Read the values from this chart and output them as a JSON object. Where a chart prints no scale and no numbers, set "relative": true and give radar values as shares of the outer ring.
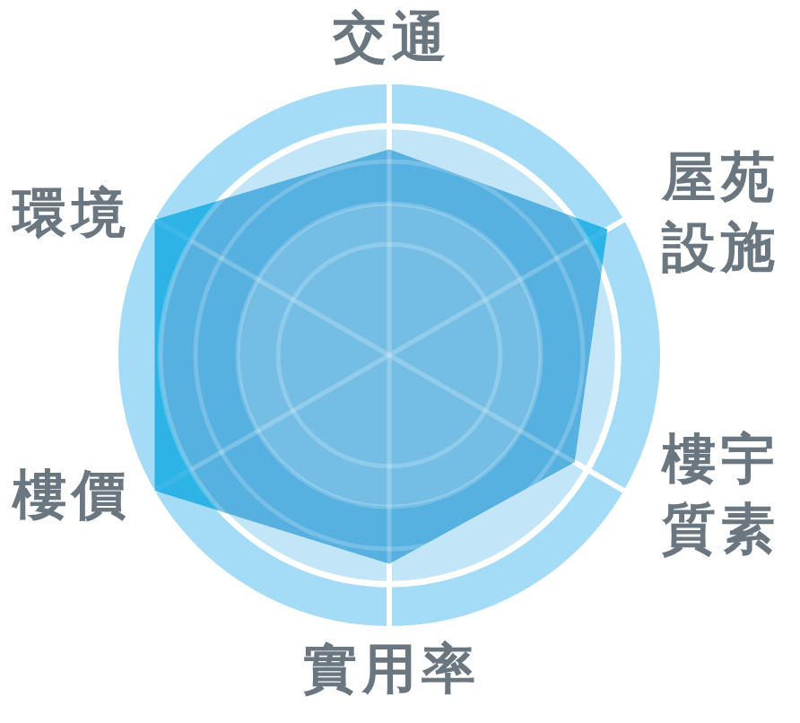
{
  "chart_data": {
    "type": "radar",
    "categories": [
      "交通",
      "屋苑設施",
      "樓宇質素",
      "實用率",
      "樓價",
      "環境"
    ],
    "relative": true,
    "grid": true,
    "series": [
      {
        "color": "#1aabe4",
        "values": [
          0.76,
          0.93,
          0.79,
          0.77,
          1.0,
          1.0
        ]
      }
    ]
  }
}
